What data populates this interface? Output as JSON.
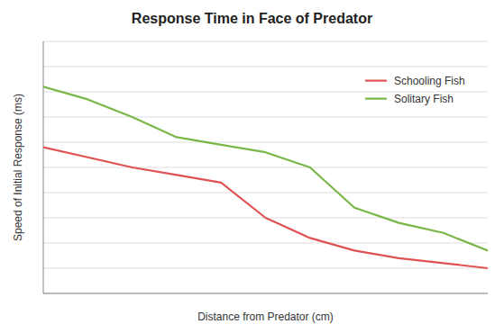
{
  "chart_data": {
    "type": "line",
    "title": "Response Time in Face of Predator",
    "xlabel": "Distance from Predator (cm)",
    "ylabel": "Speed of Initial Response (ms)",
    "x": [
      0,
      1,
      2,
      3,
      4,
      5,
      6,
      7,
      8,
      9,
      10
    ],
    "series": [
      {
        "name": "Schooling Fish",
        "color": "#e05252",
        "values": [
          0.58,
          0.54,
          0.5,
          0.47,
          0.44,
          0.3,
          0.22,
          0.17,
          0.14,
          0.12,
          0.1
        ]
      },
      {
        "name": "Solitary Fish",
        "color": "#7ab648",
        "values": [
          0.82,
          0.77,
          0.7,
          0.62,
          0.59,
          0.56,
          0.5,
          0.34,
          0.28,
          0.24,
          0.17
        ]
      }
    ],
    "xlim": [
      0,
      10
    ],
    "ylim": [
      0,
      1
    ],
    "yticks": [
      0,
      0.1,
      0.2,
      0.3,
      0.4,
      0.5,
      0.6,
      0.7,
      0.8,
      0.9,
      1
    ],
    "grid": true,
    "legend": "upper right",
    "tick_labels": false
  }
}
